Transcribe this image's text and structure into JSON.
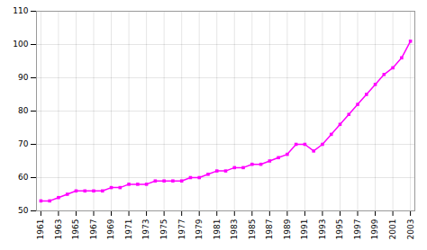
{
  "chart_data": {
    "type": "line",
    "x": [
      1961,
      1962,
      1963,
      1964,
      1965,
      1966,
      1967,
      1968,
      1969,
      1970,
      1971,
      1972,
      1973,
      1974,
      1975,
      1976,
      1977,
      1978,
      1979,
      1980,
      1981,
      1982,
      1983,
      1984,
      1985,
      1986,
      1987,
      1988,
      1989,
      1990,
      1991,
      1992,
      1993,
      1994,
      1995,
      1996,
      1997,
      1998,
      1999,
      2000,
      2001,
      2002,
      2003
    ],
    "values": [
      53,
      53,
      54,
      55,
      56,
      56,
      56,
      56,
      57,
      57,
      58,
      58,
      58,
      59,
      59,
      59,
      59,
      60,
      60,
      61,
      62,
      62,
      63,
      63,
      64,
      64,
      65,
      66,
      67,
      70,
      70,
      68,
      70,
      73,
      76,
      79,
      82,
      85,
      88,
      91,
      93,
      96,
      101
    ],
    "color": "#ff00ff",
    "marker": "square",
    "xlim": [
      1960.5,
      2003.5
    ],
    "xticks": [
      1961,
      1963,
      1965,
      1967,
      1969,
      1971,
      1973,
      1975,
      1977,
      1979,
      1981,
      1983,
      1985,
      1987,
      1989,
      1991,
      1993,
      1995,
      1997,
      1999,
      2001,
      2003
    ],
    "ylim": [
      50,
      110
    ],
    "yticks": [
      50,
      60,
      70,
      80,
      90,
      100,
      110
    ],
    "grid": true
  }
}
